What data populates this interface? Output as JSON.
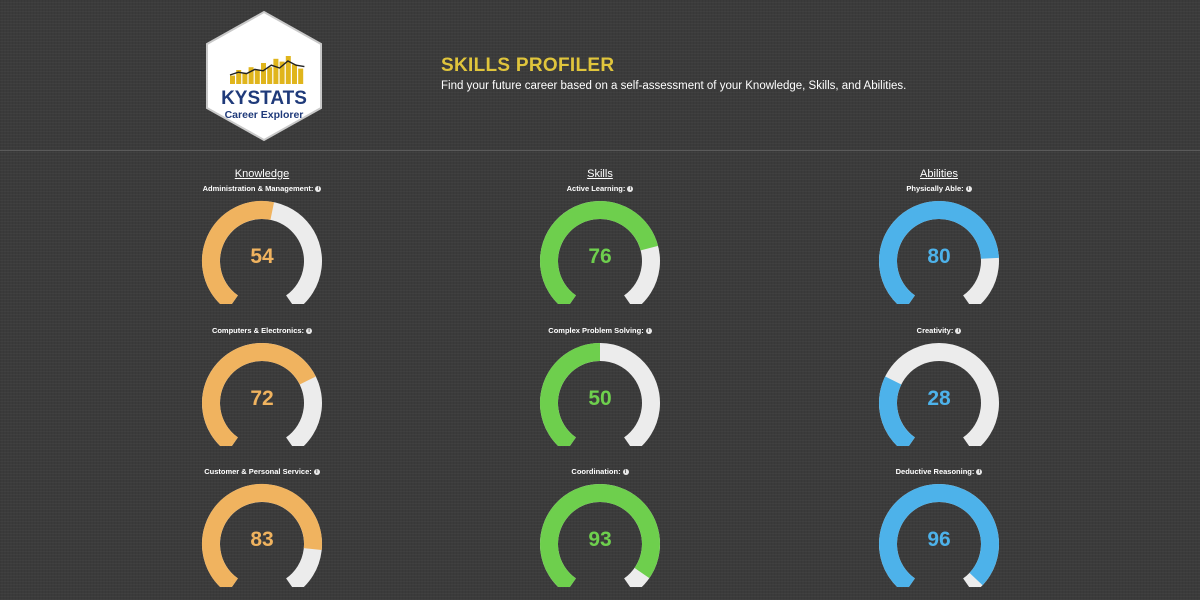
{
  "logo": {
    "brand": "KYSTATS",
    "subtitle": "Career Explorer",
    "bars": [
      0.3,
      0.5,
      0.4,
      0.6,
      0.5,
      0.75,
      0.6,
      0.9,
      0.8,
      1.0,
      0.7,
      0.55
    ],
    "line_points": [
      0.25,
      0.35,
      0.3,
      0.45,
      0.4,
      0.6,
      0.5,
      0.75,
      0.6,
      0.55
    ]
  },
  "header": {
    "title": "SKILLS PROFILER",
    "subtitle": "Find your future career based on a self-assessment of your Knowledge, Skills, and Abilities."
  },
  "colors": {
    "knowledge": "#f0b35f",
    "skills": "#6ecf4d",
    "abilities": "#4db2ea",
    "track": "#ececec"
  },
  "info_icon_glyph": "i",
  "max_value": 100,
  "columns": [
    {
      "key": "knowledge",
      "heading": "Knowledge",
      "items": [
        {
          "label": "Administration & Management:",
          "value": 54
        },
        {
          "label": "Computers & Electronics:",
          "value": 72
        },
        {
          "label": "Customer & Personal Service:",
          "value": 83
        }
      ]
    },
    {
      "key": "skills",
      "heading": "Skills",
      "items": [
        {
          "label": "Active Learning:",
          "value": 76
        },
        {
          "label": "Complex Problem Solving:",
          "value": 50
        },
        {
          "label": "Coordination:",
          "value": 93
        }
      ]
    },
    {
      "key": "abilities",
      "heading": "Abilities",
      "items": [
        {
          "label": "Physically Able:",
          "value": 80
        },
        {
          "label": "Creativity:",
          "value": 28
        },
        {
          "label": "Deductive Reasoning:",
          "value": 96
        }
      ]
    }
  ]
}
